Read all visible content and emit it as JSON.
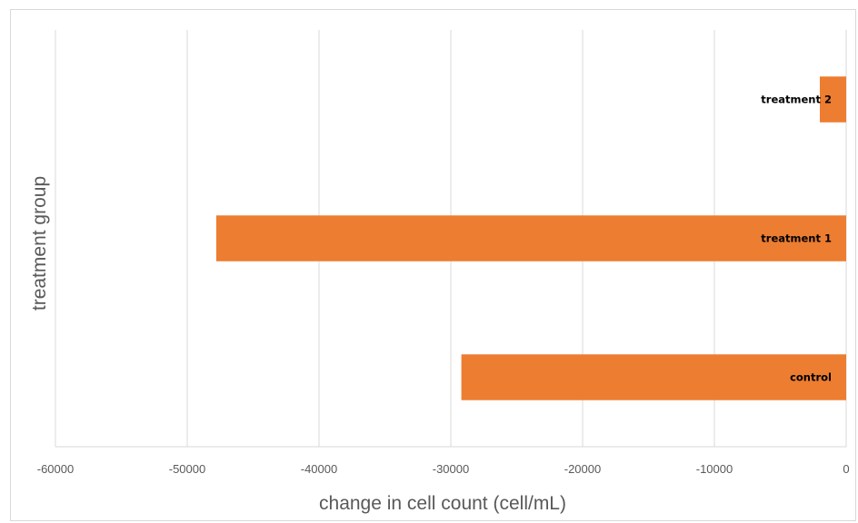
{
  "chart_data": {
    "type": "bar",
    "orientation": "horizontal",
    "categories": [
      "treatment 2",
      "treatment 1",
      "control"
    ],
    "values": [
      -2000,
      -47800,
      -29200
    ],
    "data_labels": [
      "treatment 2",
      "treatment 1",
      "control"
    ],
    "title": "",
    "xlabel": "change in cell count (cell/mL)",
    "ylabel": "treatment group",
    "xlim": [
      -60000,
      0
    ],
    "xticks": [
      -60000,
      -50000,
      -40000,
      -30000,
      -20000,
      -10000,
      0
    ],
    "grid": "vertical",
    "legend": "none",
    "bar_color": "#ED7D31",
    "gridline_color": "#d9d9d9"
  }
}
